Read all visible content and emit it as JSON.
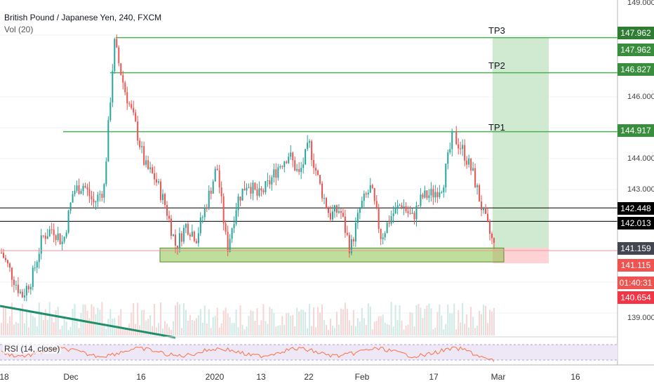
{
  "legend": {
    "title": "British Pound / Japanese Yen, 240, FXCM",
    "volume": "Vol (20)",
    "rsi": "RSI (14, close)"
  },
  "targets": [
    {
      "label": "TP1",
      "price": 144.917
    },
    {
      "label": "TP2",
      "price": 146.827
    },
    {
      "label": "TP3",
      "price": 147.962
    }
  ],
  "price_axis_ticks": [
    "149.000",
    "146.000",
    "144.000",
    "143.000",
    "139.000"
  ],
  "price_badges": [
    {
      "name": "tp3-price-badge",
      "text": "147.962",
      "color": "#2e7d32",
      "price": 147.962
    },
    {
      "name": "high-price-badge",
      "text": "147.962",
      "color": "#388e3c",
      "price": 147.962
    },
    {
      "name": "tp2-price-badge",
      "text": "146.827",
      "color": "#388e3c",
      "price": 146.827
    },
    {
      "name": "tp1-price-badge",
      "text": "144.917",
      "color": "#388e3c",
      "price": 144.917
    },
    {
      "name": "level-1-price-badge",
      "text": "142.448",
      "color": "#000000",
      "price": 142.448
    },
    {
      "name": "level-2-price-badge",
      "text": "142.013",
      "color": "#000000",
      "price": 142.013
    },
    {
      "name": "entry-price-badge",
      "text": "141.159",
      "color": "#434651",
      "price": 141.159
    },
    {
      "name": "current-price-badge",
      "text": "141.115",
      "color": "#ef5350",
      "price": 141.115
    },
    {
      "name": "countdown-badge",
      "text": "01:40:31",
      "color": "#ef5350",
      "price": 141.115
    },
    {
      "name": "stop-price-badge",
      "text": "140.654",
      "color": "#f23645",
      "price": 140.654
    }
  ],
  "time_axis_ticks": [
    "18",
    "Dec",
    "16",
    "2020",
    "13",
    "22",
    "Feb",
    "17",
    "Mar",
    "16"
  ],
  "colors": {
    "up": "#26a69a",
    "down": "#ef5350",
    "target_line": "#4caf50",
    "profit_zone": "#c8e6c9",
    "loss_zone": "#ffcdd2",
    "support_zone": "#8bc34a",
    "rsi_line": "#ff7043",
    "rsi_band": "#ede7f6"
  },
  "chart_data": {
    "type": "candlestick",
    "symbol": "GBPJPY",
    "timeframe": "240",
    "price_range": [
      138.5,
      149.0
    ],
    "horizontal_levels": [
      142.448,
      142.013
    ],
    "support_zone": [
      140.7,
      141.15
    ],
    "position": {
      "entry": 141.159,
      "take_profit": 147.962,
      "stop": 140.654
    },
    "trendline": "descending",
    "series": [
      {
        "name": "close",
        "values": [
          141.0,
          140.3,
          139.6,
          140.2,
          141.5,
          141.8,
          141.3,
          143.0,
          143.2,
          142.6,
          143.1,
          147.8,
          146.3,
          145.2,
          143.8,
          143.4,
          142.5,
          141.2,
          141.9,
          141.5,
          142.6,
          143.8,
          141.1,
          142.7,
          143.3,
          142.8,
          143.2,
          143.8,
          144.2,
          143.5,
          144.5,
          143.2,
          142.2,
          142.4,
          141.1,
          142.5,
          143.1,
          141.5,
          142.2,
          142.6,
          142.1,
          142.8,
          142.9,
          143.2,
          144.8,
          144.3,
          143.5,
          142.2,
          141.2
        ]
      }
    ]
  }
}
